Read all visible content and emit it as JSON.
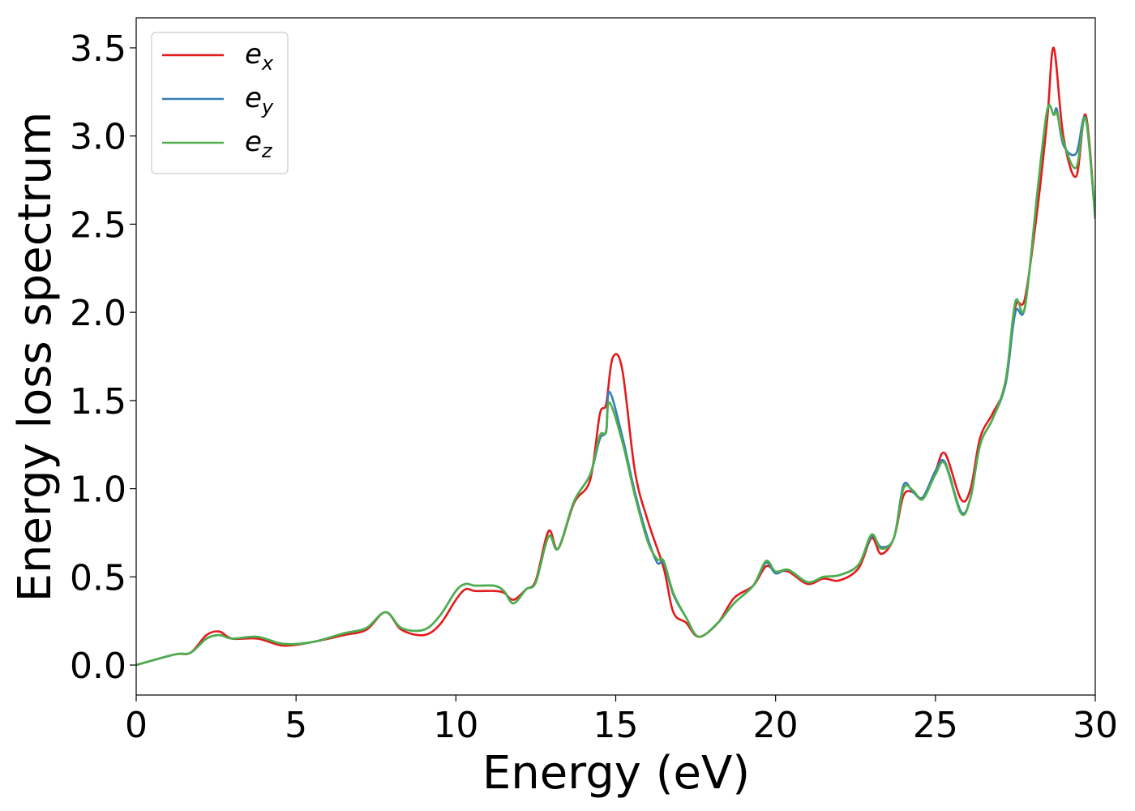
{
  "chart_data": {
    "type": "line",
    "title": "",
    "xlabel": "Energy (eV)",
    "ylabel": "Energy loss spectrum",
    "xlim": [
      0,
      30
    ],
    "ylim": [
      -0.17,
      3.67
    ],
    "xticks": [
      0,
      5,
      10,
      15,
      20,
      25,
      30
    ],
    "xtick_labels": [
      "0",
      "5",
      "10",
      "15",
      "20",
      "25",
      "30"
    ],
    "yticks": [
      0.0,
      0.5,
      1.0,
      1.5,
      2.0,
      2.5,
      3.0,
      3.5
    ],
    "ytick_labels": [
      "0.0",
      "0.5",
      "1.0",
      "1.5",
      "2.0",
      "2.5",
      "3.0",
      "3.5"
    ],
    "grid": false,
    "legend_position": "top-left",
    "series": [
      {
        "name": "e_x",
        "label_main": "e",
        "label_sub": "x",
        "color": "#e41a1c",
        "points": [
          [
            0,
            0
          ],
          [
            1.2,
            0.06
          ],
          [
            1.7,
            0.07
          ],
          [
            2.2,
            0.17
          ],
          [
            2.6,
            0.19
          ],
          [
            3.0,
            0.15
          ],
          [
            3.8,
            0.15
          ],
          [
            4.6,
            0.11
          ],
          [
            5.5,
            0.13
          ],
          [
            6.5,
            0.17
          ],
          [
            7.2,
            0.2
          ],
          [
            7.8,
            0.3
          ],
          [
            8.3,
            0.2
          ],
          [
            9.0,
            0.17
          ],
          [
            9.5,
            0.23
          ],
          [
            10.0,
            0.37
          ],
          [
            10.3,
            0.43
          ],
          [
            10.6,
            0.42
          ],
          [
            11.2,
            0.42
          ],
          [
            11.5,
            0.41
          ],
          [
            11.8,
            0.37
          ],
          [
            12.2,
            0.43
          ],
          [
            12.5,
            0.48
          ],
          [
            12.9,
            0.76
          ],
          [
            13.2,
            0.66
          ],
          [
            13.7,
            0.92
          ],
          [
            14.2,
            1.05
          ],
          [
            14.5,
            1.42
          ],
          [
            14.7,
            1.48
          ],
          [
            14.9,
            1.74
          ],
          [
            15.2,
            1.68
          ],
          [
            15.6,
            1.1
          ],
          [
            16.0,
            0.82
          ],
          [
            16.5,
            0.55
          ],
          [
            16.8,
            0.3
          ],
          [
            17.2,
            0.24
          ],
          [
            17.6,
            0.16
          ],
          [
            18.2,
            0.24
          ],
          [
            18.7,
            0.38
          ],
          [
            19.3,
            0.45
          ],
          [
            19.7,
            0.56
          ],
          [
            20.0,
            0.53
          ],
          [
            20.4,
            0.53
          ],
          [
            21.0,
            0.46
          ],
          [
            21.5,
            0.49
          ],
          [
            22.0,
            0.48
          ],
          [
            22.6,
            0.55
          ],
          [
            23.0,
            0.72
          ],
          [
            23.3,
            0.63
          ],
          [
            23.7,
            0.72
          ],
          [
            24.0,
            0.96
          ],
          [
            24.3,
            0.98
          ],
          [
            24.6,
            0.95
          ],
          [
            25.0,
            1.1
          ],
          [
            25.3,
            1.2
          ],
          [
            25.8,
            0.94
          ],
          [
            26.1,
            1.0
          ],
          [
            26.4,
            1.29
          ],
          [
            26.8,
            1.43
          ],
          [
            27.2,
            1.6
          ],
          [
            27.5,
            2.03
          ],
          [
            27.8,
            2.08
          ],
          [
            28.2,
            2.6
          ],
          [
            28.5,
            3.1
          ],
          [
            28.7,
            3.5
          ],
          [
            29.0,
            3.0
          ],
          [
            29.4,
            2.77
          ],
          [
            29.7,
            3.12
          ],
          [
            30.0,
            2.53
          ]
        ]
      },
      {
        "name": "e_y",
        "label_main": "e",
        "label_sub": "y",
        "color": "#377eb8",
        "points": [
          [
            0,
            0
          ],
          [
            1.2,
            0.06
          ],
          [
            1.7,
            0.07
          ],
          [
            2.2,
            0.15
          ],
          [
            2.6,
            0.17
          ],
          [
            3.0,
            0.15
          ],
          [
            3.8,
            0.16
          ],
          [
            4.6,
            0.12
          ],
          [
            5.5,
            0.13
          ],
          [
            6.5,
            0.18
          ],
          [
            7.2,
            0.21
          ],
          [
            7.8,
            0.3
          ],
          [
            8.3,
            0.21
          ],
          [
            9.0,
            0.2
          ],
          [
            9.5,
            0.28
          ],
          [
            10.0,
            0.42
          ],
          [
            10.3,
            0.46
          ],
          [
            10.6,
            0.45
          ],
          [
            11.2,
            0.45
          ],
          [
            11.5,
            0.42
          ],
          [
            11.8,
            0.35
          ],
          [
            12.2,
            0.43
          ],
          [
            12.5,
            0.47
          ],
          [
            12.9,
            0.73
          ],
          [
            13.2,
            0.66
          ],
          [
            13.7,
            0.93
          ],
          [
            14.2,
            1.08
          ],
          [
            14.5,
            1.28
          ],
          [
            14.7,
            1.33
          ],
          [
            14.8,
            1.55
          ],
          [
            15.2,
            1.3
          ],
          [
            15.6,
            0.98
          ],
          [
            16.0,
            0.72
          ],
          [
            16.3,
            0.58
          ],
          [
            16.5,
            0.58
          ],
          [
            16.8,
            0.4
          ],
          [
            17.2,
            0.27
          ],
          [
            17.6,
            0.16
          ],
          [
            18.2,
            0.24
          ],
          [
            18.7,
            0.35
          ],
          [
            19.3,
            0.45
          ],
          [
            19.7,
            0.58
          ],
          [
            20.0,
            0.52
          ],
          [
            20.4,
            0.54
          ],
          [
            21.0,
            0.47
          ],
          [
            21.5,
            0.5
          ],
          [
            22.0,
            0.51
          ],
          [
            22.6,
            0.57
          ],
          [
            23.0,
            0.73
          ],
          [
            23.3,
            0.67
          ],
          [
            23.7,
            0.72
          ],
          [
            24.0,
            1.02
          ],
          [
            24.3,
            0.98
          ],
          [
            24.6,
            0.95
          ],
          [
            25.0,
            1.1
          ],
          [
            25.3,
            1.15
          ],
          [
            25.8,
            0.87
          ],
          [
            26.1,
            0.95
          ],
          [
            26.4,
            1.25
          ],
          [
            26.8,
            1.4
          ],
          [
            27.2,
            1.6
          ],
          [
            27.5,
            2.0
          ],
          [
            27.8,
            2.03
          ],
          [
            28.2,
            2.7
          ],
          [
            28.5,
            3.15
          ],
          [
            28.7,
            3.12
          ],
          [
            28.8,
            3.15
          ],
          [
            29.0,
            2.95
          ],
          [
            29.4,
            2.9
          ],
          [
            29.7,
            3.1
          ],
          [
            30.0,
            2.53
          ]
        ]
      },
      {
        "name": "e_z",
        "label_main": "e",
        "label_sub": "z",
        "color": "#4daf4a",
        "points": [
          [
            0,
            0
          ],
          [
            1.2,
            0.06
          ],
          [
            1.7,
            0.07
          ],
          [
            2.2,
            0.15
          ],
          [
            2.6,
            0.17
          ],
          [
            3.0,
            0.15
          ],
          [
            3.8,
            0.16
          ],
          [
            4.6,
            0.12
          ],
          [
            5.5,
            0.13
          ],
          [
            6.5,
            0.18
          ],
          [
            7.2,
            0.21
          ],
          [
            7.8,
            0.3
          ],
          [
            8.3,
            0.21
          ],
          [
            9.0,
            0.2
          ],
          [
            9.5,
            0.28
          ],
          [
            10.0,
            0.42
          ],
          [
            10.3,
            0.46
          ],
          [
            10.6,
            0.45
          ],
          [
            11.2,
            0.45
          ],
          [
            11.5,
            0.42
          ],
          [
            11.8,
            0.35
          ],
          [
            12.2,
            0.43
          ],
          [
            12.5,
            0.47
          ],
          [
            12.9,
            0.73
          ],
          [
            13.2,
            0.66
          ],
          [
            13.7,
            0.93
          ],
          [
            14.2,
            1.08
          ],
          [
            14.5,
            1.3
          ],
          [
            14.7,
            1.32
          ],
          [
            14.8,
            1.49
          ],
          [
            15.2,
            1.27
          ],
          [
            15.6,
            0.96
          ],
          [
            16.0,
            0.7
          ],
          [
            16.3,
            0.6
          ],
          [
            16.5,
            0.59
          ],
          [
            16.8,
            0.41
          ],
          [
            17.2,
            0.27
          ],
          [
            17.6,
            0.16
          ],
          [
            18.2,
            0.24
          ],
          [
            18.7,
            0.35
          ],
          [
            19.3,
            0.45
          ],
          [
            19.7,
            0.59
          ],
          [
            20.0,
            0.53
          ],
          [
            20.4,
            0.54
          ],
          [
            21.0,
            0.47
          ],
          [
            21.5,
            0.5
          ],
          [
            22.0,
            0.51
          ],
          [
            22.6,
            0.57
          ],
          [
            23.0,
            0.74
          ],
          [
            23.3,
            0.66
          ],
          [
            23.7,
            0.72
          ],
          [
            24.0,
            1.0
          ],
          [
            24.3,
            0.99
          ],
          [
            24.6,
            0.94
          ],
          [
            25.0,
            1.08
          ],
          [
            25.3,
            1.14
          ],
          [
            25.8,
            0.86
          ],
          [
            26.1,
            0.95
          ],
          [
            26.4,
            1.25
          ],
          [
            26.8,
            1.4
          ],
          [
            27.2,
            1.62
          ],
          [
            27.5,
            2.06
          ],
          [
            27.8,
            2.03
          ],
          [
            28.2,
            2.7
          ],
          [
            28.5,
            3.15
          ],
          [
            28.7,
            3.12
          ],
          [
            28.8,
            3.13
          ],
          [
            29.0,
            2.97
          ],
          [
            29.4,
            2.82
          ],
          [
            29.7,
            3.1
          ],
          [
            30.0,
            2.53
          ]
        ]
      }
    ]
  }
}
